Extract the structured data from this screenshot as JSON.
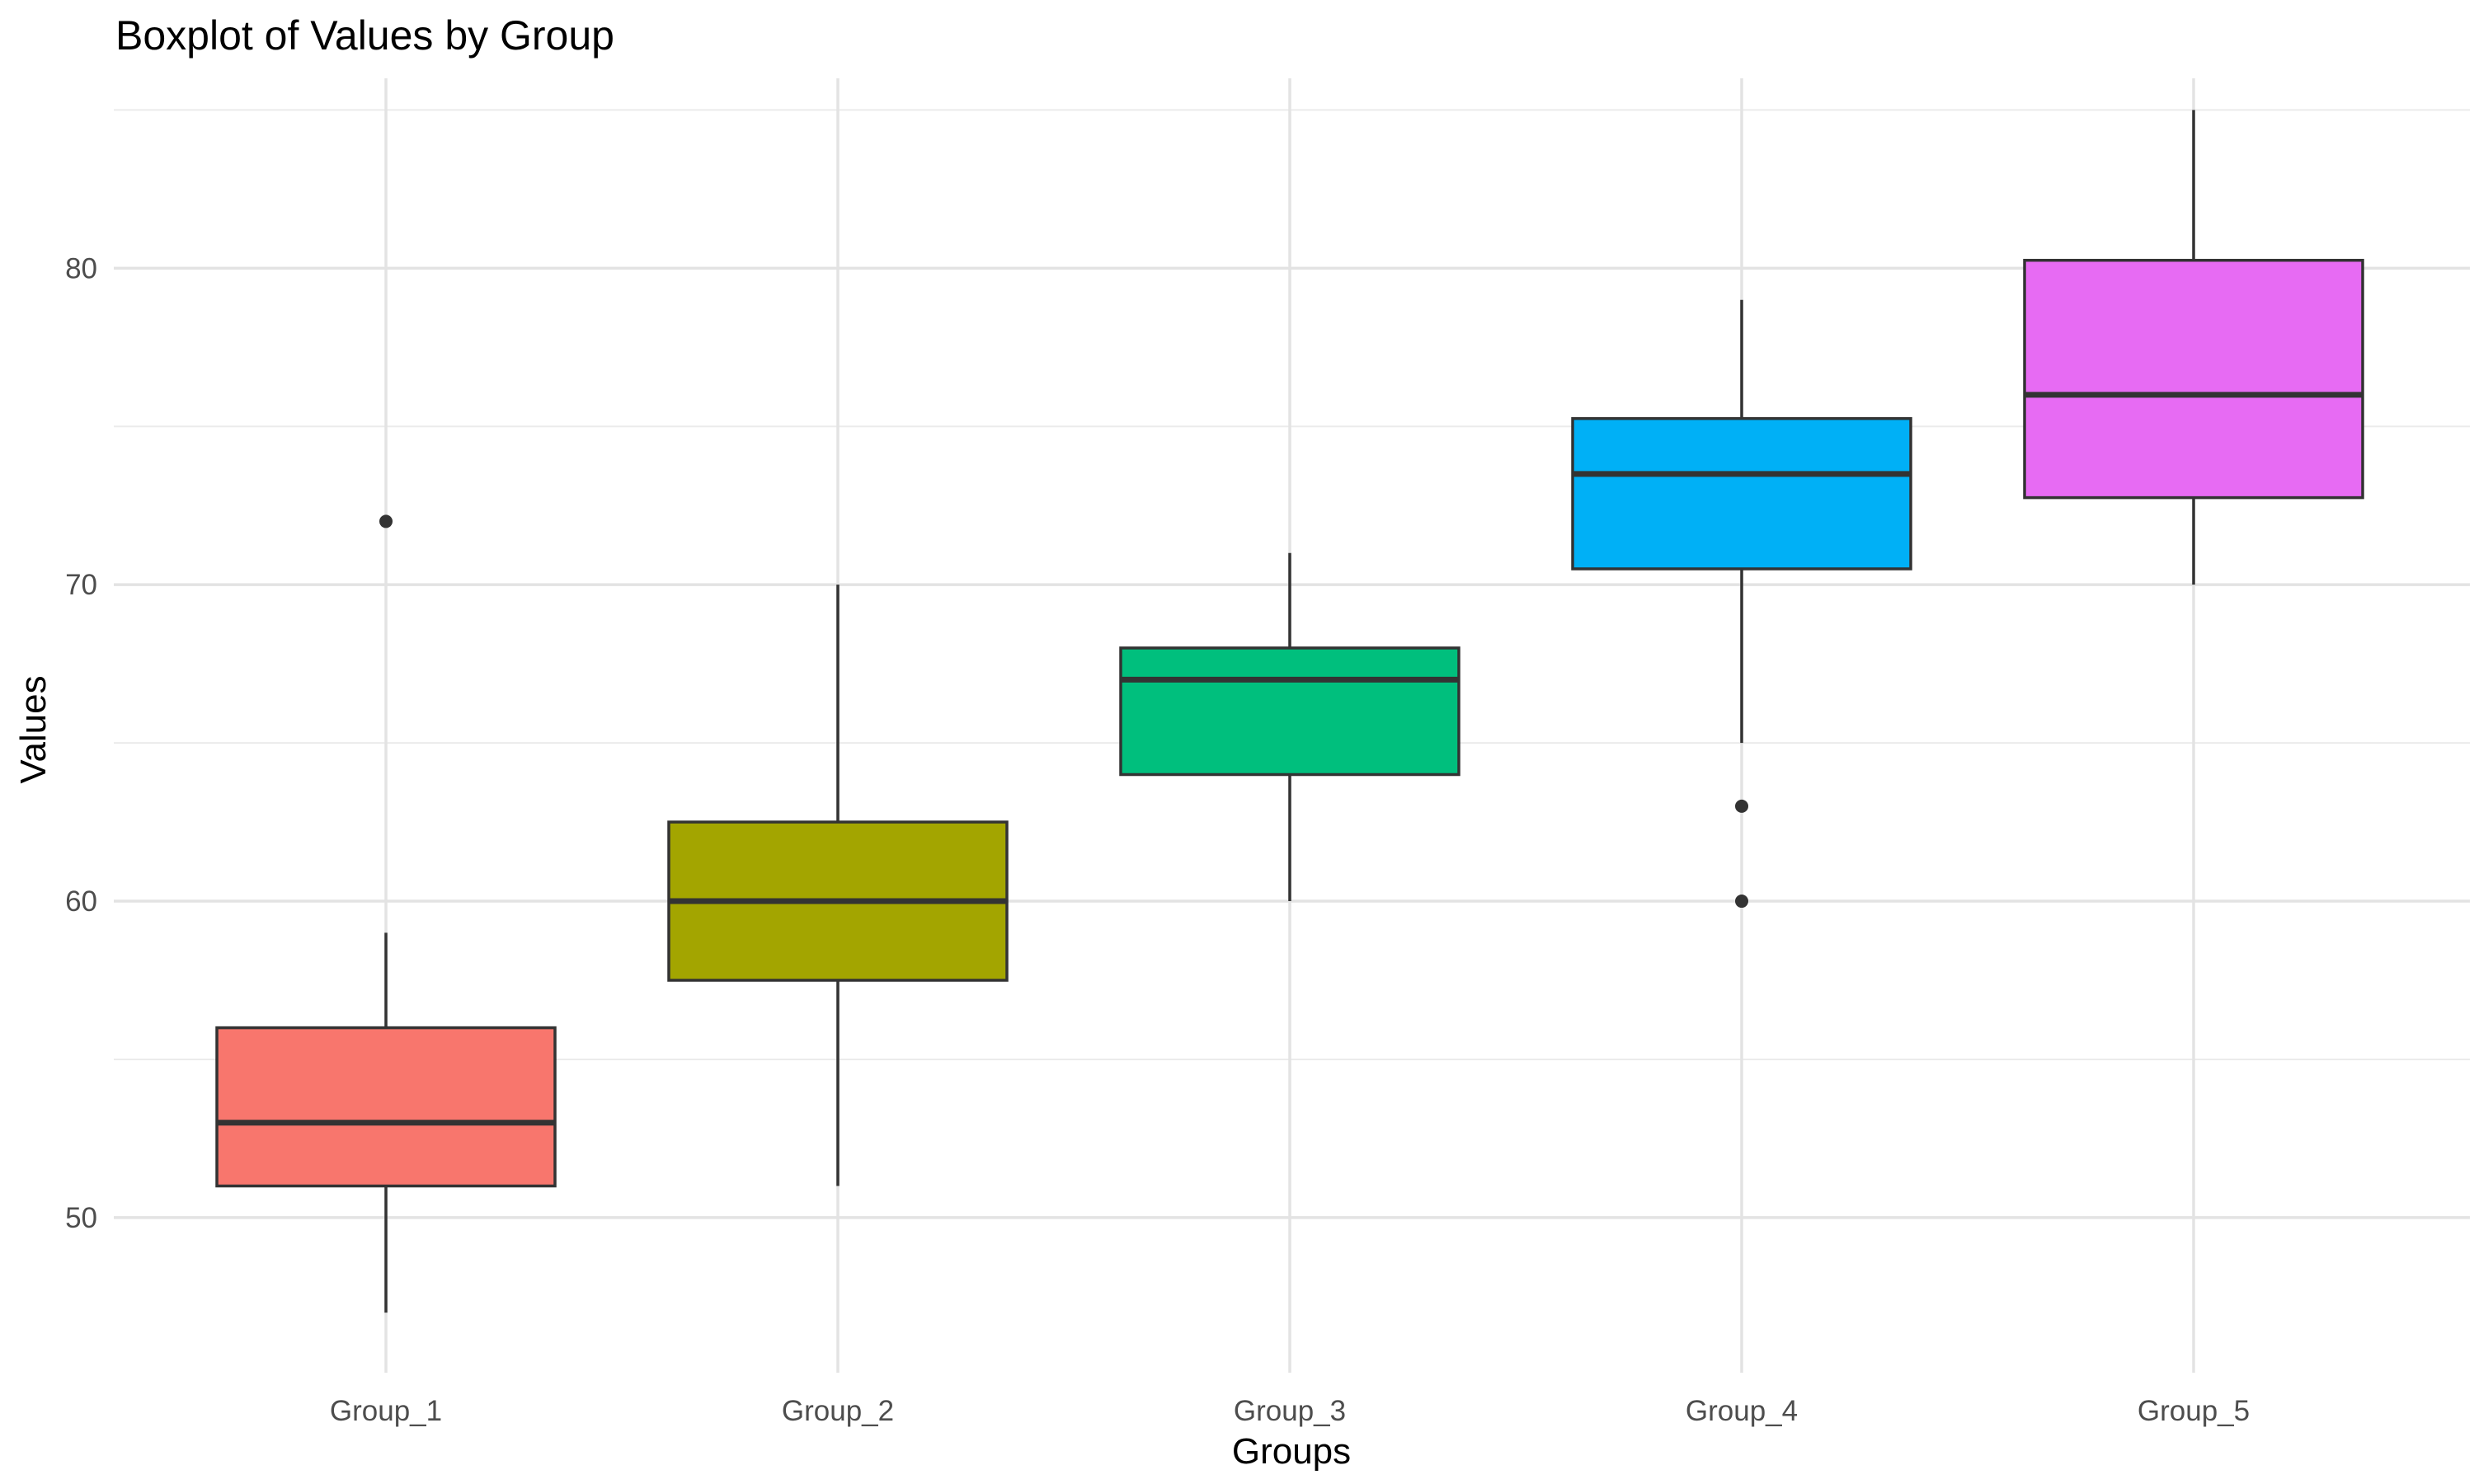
{
  "chart_data": {
    "type": "boxplot",
    "title": "Boxplot of Values by Group",
    "xlabel": "Groups",
    "ylabel": "Values",
    "ylim": [
      45.1,
      86.0
    ],
    "yticks": [
      50,
      60,
      70,
      80
    ],
    "grid": true,
    "legend": "none",
    "categories": [
      "Group_1",
      "Group_2",
      "Group_3",
      "Group_4",
      "Group_5"
    ],
    "boxes": [
      {
        "category": "Group_1",
        "whisker_low": 47,
        "q1": 51,
        "median": 53,
        "q3": 56,
        "whisker_high": 59,
        "outliers": [
          72
        ],
        "color": "#F8766D"
      },
      {
        "category": "Group_2",
        "whisker_low": 51,
        "q1": 57.5,
        "median": 60,
        "q3": 62.5,
        "whisker_high": 70,
        "outliers": [],
        "color": "#A3A500"
      },
      {
        "category": "Group_3",
        "whisker_low": 60,
        "q1": 64,
        "median": 67,
        "q3": 68,
        "whisker_high": 71,
        "outliers": [],
        "color": "#00BF7D"
      },
      {
        "category": "Group_4",
        "whisker_low": 65,
        "q1": 70.5,
        "median": 73.5,
        "q3": 75.25,
        "whisker_high": 79,
        "outliers": [
          63,
          60
        ],
        "color": "#00B0F6"
      },
      {
        "category": "Group_5",
        "whisker_low": 70,
        "q1": 72.75,
        "median": 76,
        "q3": 80.25,
        "whisker_high": 85,
        "outliers": [],
        "color": "#E76BF3"
      }
    ]
  }
}
